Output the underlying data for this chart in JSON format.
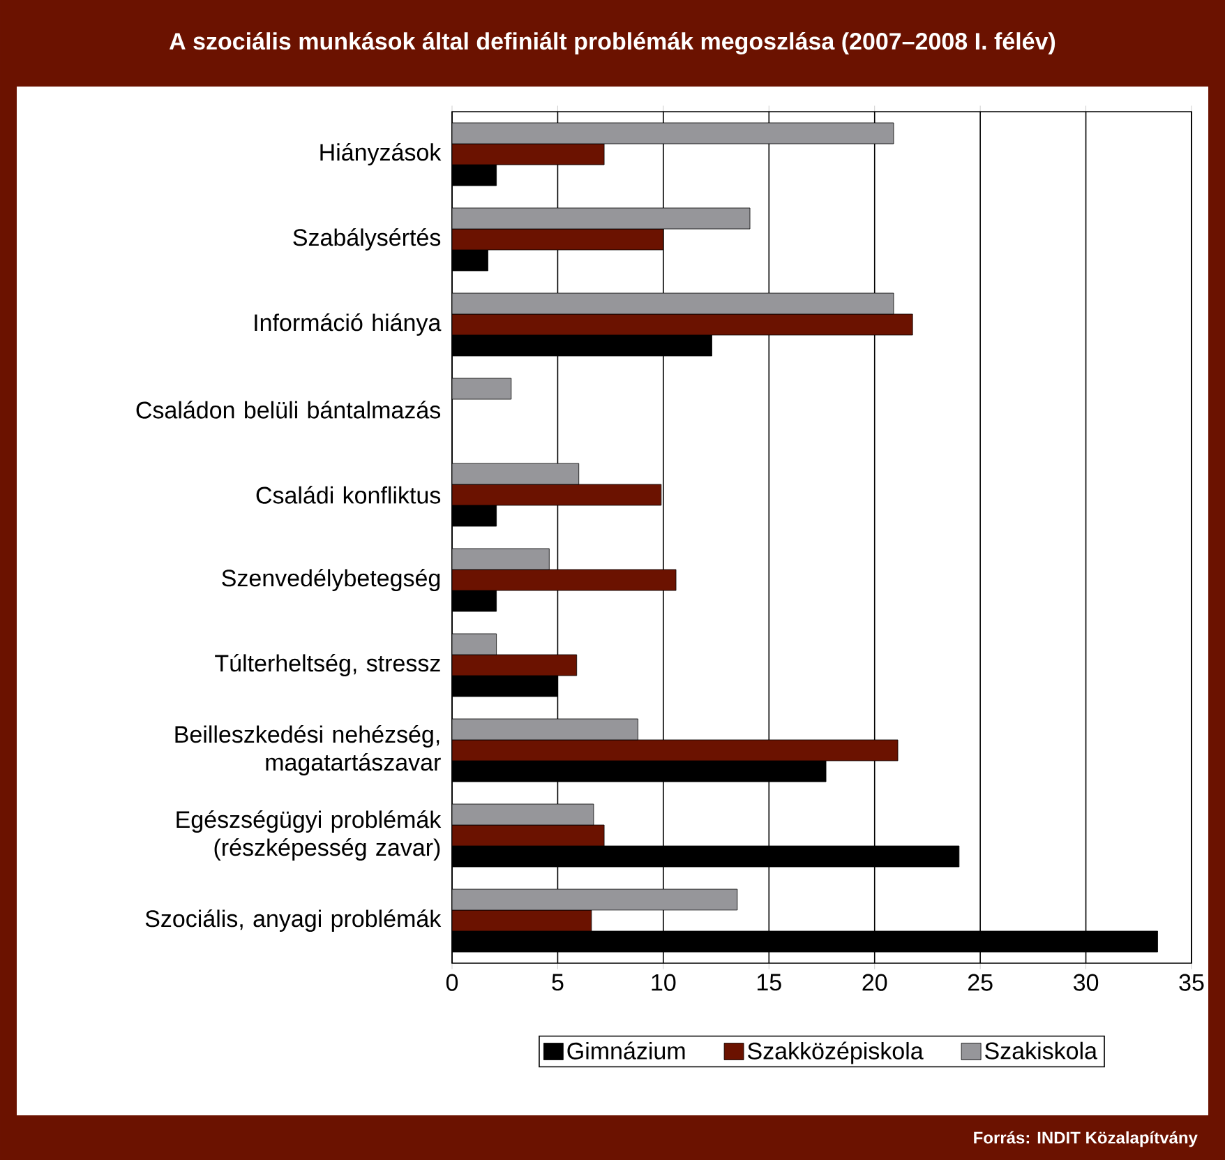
{
  "chart_data": {
    "type": "bar",
    "orientation": "horizontal",
    "title": "A szociális munkások által definiált problémák megoszlása (2007–2008 I. félév)",
    "categories": [
      "Hiányzások",
      "Szabálysértés",
      "Információ hiánya",
      "Családon belüli bántalmazás",
      "Családi konfliktus",
      "Szenvedélybetegség",
      "Túlterheltség, stressz",
      "Beilleszkedési nehézség, magatartászavar",
      "Egészségügyi problémák (részképesség zavar)",
      "Szociális, anyagi problémák"
    ],
    "series": [
      {
        "name": "Gimnázium",
        "color": "#000000",
        "values": [
          2.1,
          1.7,
          12.3,
          null,
          2.1,
          2.1,
          5.0,
          17.7,
          24.0,
          33.4
        ]
      },
      {
        "name": "Szakközépiskola",
        "color": "#6b1200",
        "values": [
          7.2,
          10.0,
          21.8,
          null,
          9.9,
          10.6,
          5.9,
          21.1,
          7.2,
          6.6
        ]
      },
      {
        "name": "Szakiskola",
        "color": "#96969a",
        "values": [
          20.9,
          14.1,
          20.9,
          2.8,
          6.0,
          4.6,
          2.1,
          8.8,
          6.7,
          13.5
        ]
      }
    ],
    "xlim": [
      0,
      35
    ],
    "xticks": [
      0,
      5,
      10,
      15,
      20,
      25,
      30,
      35
    ],
    "grid": "x",
    "legend": "bottom",
    "annotations": [
      "Forrás: INDIT Közalapítvány"
    ]
  }
}
